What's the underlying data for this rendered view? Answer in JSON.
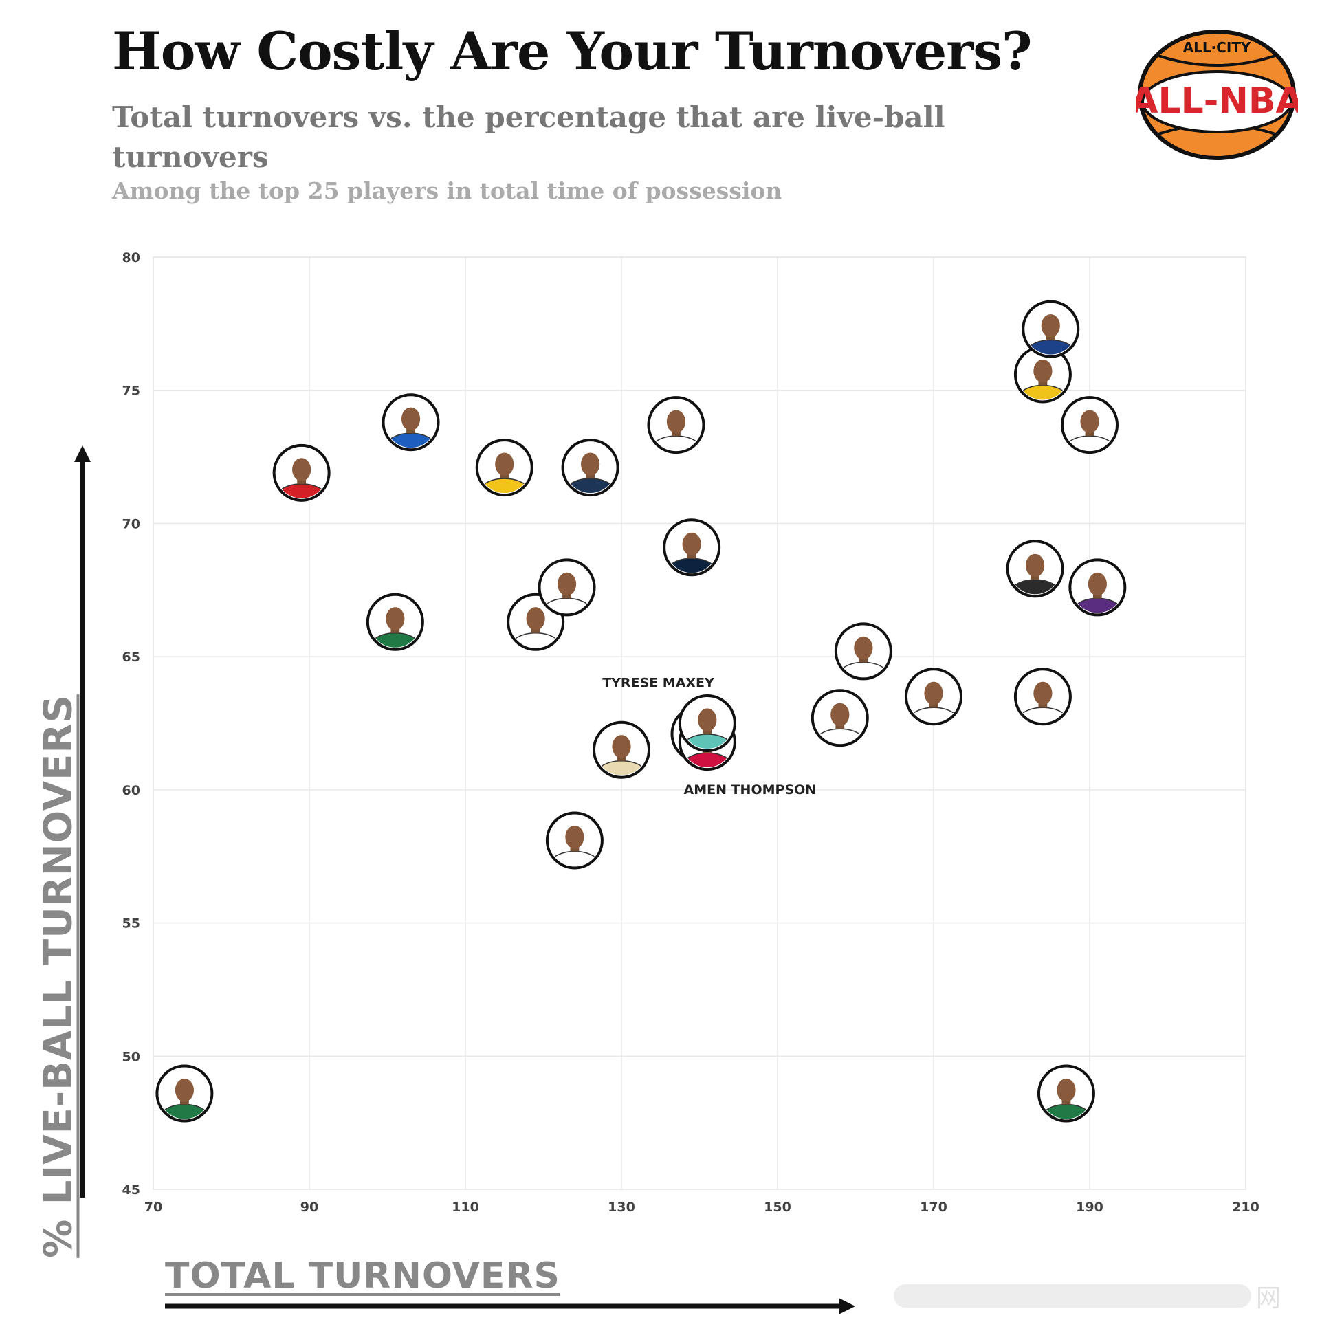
{
  "header": {
    "title": "How Costly Are Your Turnovers?",
    "subtitle": "Total turnovers vs. the percentage that are live-ball turnovers",
    "subtitle2": "Among the top 25 players in total time of possession"
  },
  "logo": {
    "top_text": "ALL·CITY",
    "main_text": "ALL-NBA",
    "colors": {
      "ball": "#f08a2c",
      "red": "#d8262c",
      "blue": "#2d4fa3"
    }
  },
  "chart_data": {
    "type": "scatter",
    "xlabel": "TOTAL TURNOVERS",
    "ylabel": "% LIVE-BALL TURNOVERS",
    "xlim": [
      70,
      210
    ],
    "ylim": [
      45,
      80
    ],
    "xticks": [
      70,
      90,
      110,
      130,
      150,
      170,
      190,
      210
    ],
    "yticks": [
      45,
      50,
      55,
      60,
      65,
      70,
      75,
      80
    ],
    "grid": true,
    "points": [
      {
        "x": 74,
        "y": 48.6,
        "label": "",
        "jersey": "#1f7a45"
      },
      {
        "x": 89,
        "y": 71.9,
        "label": "",
        "jersey": "#d32027"
      },
      {
        "x": 101,
        "y": 66.3,
        "label": "",
        "jersey": "#1f7a45"
      },
      {
        "x": 103,
        "y": 73.8,
        "label": "",
        "jersey": "#1d5fbf"
      },
      {
        "x": 115,
        "y": 72.1,
        "label": "",
        "jersey": "#f2c318"
      },
      {
        "x": 119,
        "y": 66.3,
        "label": "",
        "jersey": "#ffffff"
      },
      {
        "x": 123,
        "y": 67.6,
        "label": "",
        "jersey": "#ffffff"
      },
      {
        "x": 124,
        "y": 58.1,
        "label": "",
        "jersey": "#ffffff"
      },
      {
        "x": 126,
        "y": 72.1,
        "label": "",
        "jersey": "#1d3557"
      },
      {
        "x": 130,
        "y": 61.5,
        "label": "",
        "jersey": "#e9d9b0"
      },
      {
        "x": 137,
        "y": 73.7,
        "label": "",
        "jersey": "#ffffff"
      },
      {
        "x": 139,
        "y": 69.1,
        "label": "",
        "jersey": "#0c2340"
      },
      {
        "x": 140,
        "y": 62.1,
        "label": "TYRESE MAXEY",
        "jersey": "#1d428a"
      },
      {
        "x": 141,
        "y": 61.8,
        "label": "AMEN THOMPSON",
        "jersey": "#ce1141"
      },
      {
        "x": 141,
        "y": 62.5,
        "label": "",
        "jersey": "#5ec4b8"
      },
      {
        "x": 158,
        "y": 62.7,
        "label": "",
        "jersey": "#ffffff"
      },
      {
        "x": 161,
        "y": 65.2,
        "label": "",
        "jersey": "#ffffff"
      },
      {
        "x": 170,
        "y": 63.5,
        "label": "",
        "jersey": "#ffffff"
      },
      {
        "x": 183,
        "y": 68.3,
        "label": "",
        "jersey": "#2b2b2b"
      },
      {
        "x": 184,
        "y": 63.5,
        "label": "",
        "jersey": "#ffffff"
      },
      {
        "x": 184,
        "y": 75.6,
        "label": "",
        "jersey": "#f0c31a"
      },
      {
        "x": 185,
        "y": 77.3,
        "label": "",
        "jersey": "#1d428a"
      },
      {
        "x": 187,
        "y": 48.6,
        "label": "",
        "jersey": "#1f7a45"
      },
      {
        "x": 190,
        "y": 73.7,
        "label": "",
        "jersey": "#ffffff"
      },
      {
        "x": 191,
        "y": 67.6,
        "label": "",
        "jersey": "#5a2d81"
      }
    ]
  },
  "watermark": "网"
}
